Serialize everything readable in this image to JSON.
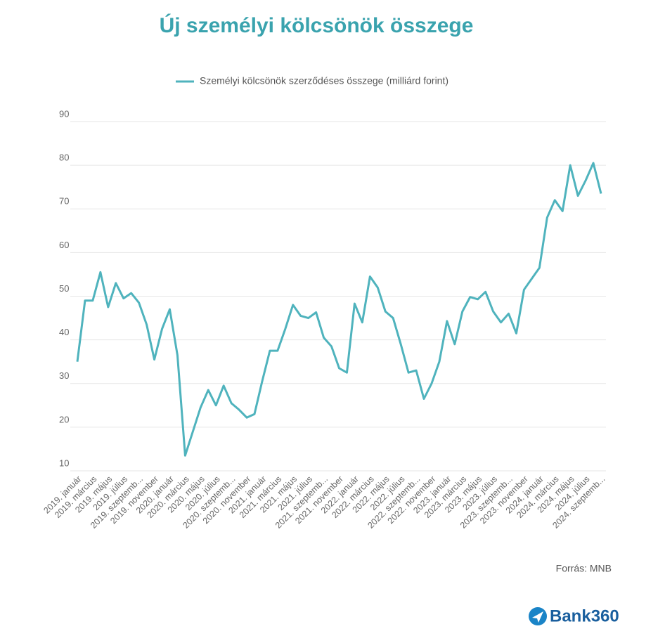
{
  "chart_data": {
    "type": "line",
    "title": "Új személyi kölcsönök összege",
    "source": "Forrás: MNB",
    "logo": "Bank360",
    "categories": [
      "2019. január",
      null,
      "2019. március",
      null,
      "2019. május",
      null,
      "2019. július",
      null,
      "2019. szeptemb...",
      null,
      "2019. november",
      null,
      "2020. január",
      null,
      "2020. március",
      null,
      "2020. május",
      null,
      "2020. július",
      null,
      "2020. szeptemb...",
      null,
      "2020. november",
      null,
      "2021. január",
      null,
      "2021. március",
      null,
      "2021. május",
      null,
      "2021. július",
      null,
      "2021. szeptemb...",
      null,
      "2021. november",
      null,
      "2022. január",
      null,
      "2022. március",
      null,
      "2022. május",
      null,
      "2022. július",
      null,
      "2022. szeptemb...",
      null,
      "2022. november",
      null,
      "2023. január",
      null,
      "2023. március",
      null,
      "2023. május",
      null,
      "2023. július",
      null,
      "2023. szeptemb...",
      null,
      "2023. november",
      null,
      "2024. január",
      null,
      "2024. március",
      null,
      "2024. május",
      null,
      "2024. július",
      null,
      "2024. szeptemb..."
    ],
    "series": [
      {
        "name": "Személyi kölcsönök szerződéses összege (milliárd forint)",
        "color": "#4fb3bd",
        "values": [
          35,
          49,
          49,
          55.5,
          47.5,
          53,
          49.5,
          50.7,
          48.5,
          43.5,
          35.5,
          42.5,
          47,
          36.5,
          13.5,
          19,
          24.5,
          28.5,
          25,
          29.5,
          25.5,
          24,
          22.2,
          23,
          30.5,
          37.5,
          37.5,
          42.5,
          48,
          45.5,
          45,
          46.3,
          40.5,
          38.5,
          33.5,
          32.5,
          48.3,
          44,
          54.5,
          52,
          46.5,
          45,
          39,
          32.5,
          33,
          26.5,
          30,
          35,
          44.3,
          39,
          46.5,
          49.8,
          49.3,
          51,
          46.5,
          44,
          46,
          41.5,
          51.5,
          54,
          56.5,
          68,
          72,
          69.5,
          80,
          73,
          76.5,
          80.5,
          73.5
        ]
      }
    ],
    "ylim": [
      10,
      90
    ],
    "yticks": [
      10,
      20,
      30,
      40,
      50,
      60,
      70,
      80,
      90
    ],
    "grid": true,
    "legend": "top"
  }
}
